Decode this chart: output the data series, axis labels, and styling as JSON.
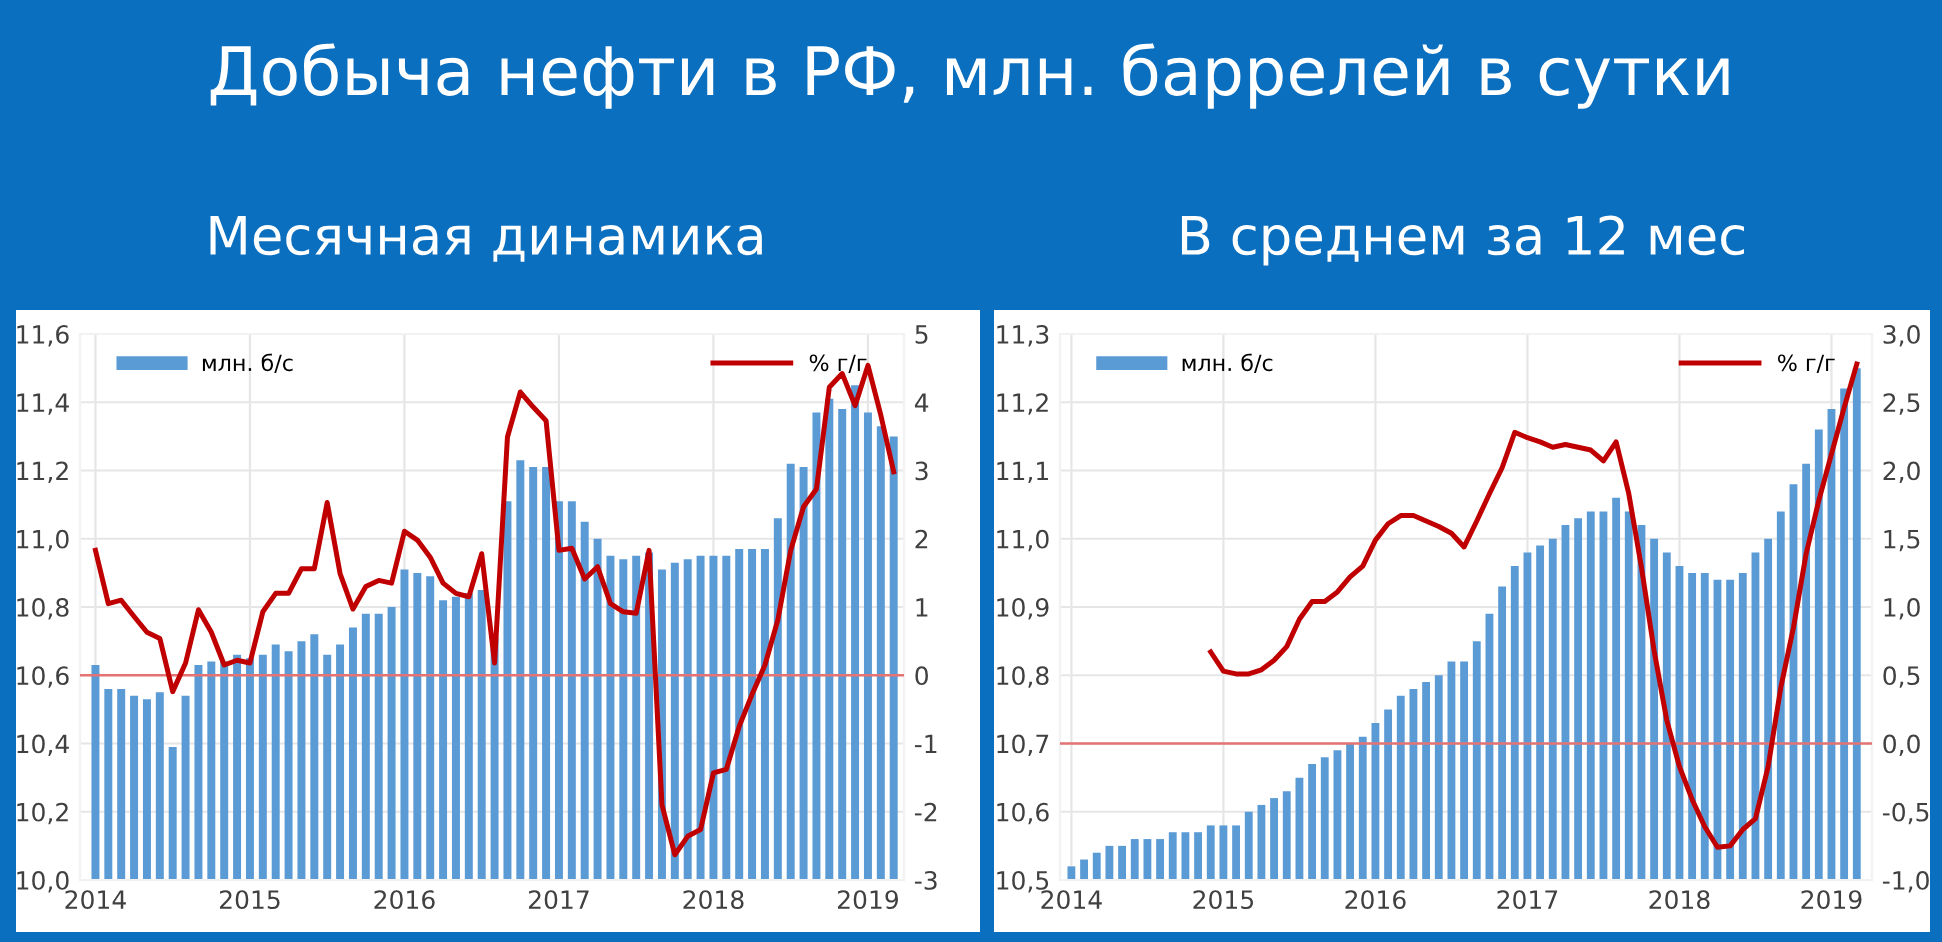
{
  "chart_data": [
    {
      "type": "bar",
      "title": "Добыча нефти в РФ, млн. баррелей в сутки",
      "subtitle": "Месячная динамика",
      "categories": [
        "2014",
        null,
        null,
        null,
        null,
        null,
        null,
        null,
        null,
        null,
        null,
        null,
        "2015",
        null,
        null,
        null,
        null,
        null,
        null,
        null,
        null,
        null,
        null,
        null,
        "2016",
        null,
        null,
        null,
        null,
        null,
        null,
        null,
        null,
        null,
        null,
        null,
        "2017",
        null,
        null,
        null,
        null,
        null,
        null,
        null,
        null,
        null,
        null,
        null,
        "2018",
        null,
        null,
        null,
        null,
        null,
        null,
        null,
        null,
        null,
        null,
        null,
        "2019",
        null,
        null
      ],
      "series": [
        {
          "name": "млн. б/с",
          "color": "#5b9bd5",
          "values": [
            10.63,
            10.56,
            10.56,
            10.54,
            10.53,
            10.55,
            10.39,
            10.54,
            10.63,
            10.64,
            10.64,
            10.66,
            10.65,
            10.66,
            10.69,
            10.67,
            10.7,
            10.72,
            10.66,
            10.69,
            10.74,
            10.78,
            10.78,
            10.8,
            10.91,
            10.9,
            10.89,
            10.82,
            10.83,
            10.84,
            10.85,
            10.71,
            11.11,
            11.23,
            11.21,
            11.21,
            11.11,
            11.11,
            11.05,
            11.0,
            10.95,
            10.94,
            10.95,
            10.96,
            10.91,
            10.93,
            10.94,
            10.95,
            10.95,
            10.95,
            10.97,
            10.97,
            10.97,
            11.06,
            11.22,
            11.21,
            11.37,
            11.41,
            11.38,
            11.45,
            11.37,
            11.33,
            11.3
          ]
        },
        {
          "name": "% г/г",
          "type": "line",
          "axis": "y2",
          "color": "#c00000",
          "values": [
            1.83,
            1.05,
            1.1,
            0.86,
            0.63,
            0.54,
            -0.24,
            0.18,
            0.96,
            0.63,
            0.15,
            0.22,
            0.18,
            0.93,
            1.2,
            1.2,
            1.56,
            1.56,
            2.53,
            1.49,
            0.97,
            1.3,
            1.39,
            1.35,
            2.11,
            1.98,
            1.73,
            1.35,
            1.2,
            1.15,
            1.78,
            0.18,
            3.49,
            4.15,
            3.93,
            3.73,
            1.83,
            1.86,
            1.41,
            1.59,
            1.05,
            0.93,
            0.91,
            1.83,
            -1.9,
            -2.63,
            -2.36,
            -2.26,
            -1.43,
            -1.38,
            -0.75,
            -0.28,
            0.15,
            0.81,
            1.83,
            2.47,
            2.73,
            4.22,
            4.42,
            3.95,
            4.54,
            3.81,
            2.98
          ]
        }
      ],
      "ylim": [
        10.0,
        11.6
      ],
      "yticks": [
        {
          "value": 10.0,
          "label": "10,0"
        },
        {
          "value": 10.2,
          "label": "10,2"
        },
        {
          "value": 10.4,
          "label": "10,4"
        },
        {
          "value": 10.6,
          "label": "10,6"
        },
        {
          "value": 10.8,
          "label": "10,8"
        },
        {
          "value": 11.0,
          "label": "11,0"
        },
        {
          "value": 11.2,
          "label": "11,2"
        },
        {
          "value": 11.4,
          "label": "11,4"
        },
        {
          "value": 11.6,
          "label": "11,6"
        }
      ],
      "y2lim": [
        -3,
        5
      ],
      "y2ticks": [
        -3,
        -2,
        -1,
        0,
        1,
        2,
        3,
        4,
        5
      ],
      "ref_lines": [
        {
          "axis": "y2",
          "value": 0,
          "color": "#e57373"
        }
      ],
      "grid": true,
      "legend": "top",
      "marker": "none",
      "line_style": "solid"
    },
    {
      "type": "bar",
      "subtitle": "В среднем за 12 мес",
      "categories": [
        "2014",
        null,
        null,
        null,
        null,
        null,
        null,
        null,
        null,
        null,
        null,
        null,
        "2015",
        null,
        null,
        null,
        null,
        null,
        null,
        null,
        null,
        null,
        null,
        null,
        "2016",
        null,
        null,
        null,
        null,
        null,
        null,
        null,
        null,
        null,
        null,
        null,
        "2017",
        null,
        null,
        null,
        null,
        null,
        null,
        null,
        null,
        null,
        null,
        null,
        "2018",
        null,
        null,
        null,
        null,
        null,
        null,
        null,
        null,
        null,
        null,
        null,
        "2019",
        null,
        null
      ],
      "series": [
        {
          "name": "млн. б/с",
          "color": "#5b9bd5",
          "values": [
            10.52,
            10.53,
            10.54,
            10.55,
            10.55,
            10.56,
            10.56,
            10.56,
            10.57,
            10.57,
            10.57,
            10.58,
            10.58,
            10.58,
            10.6,
            10.61,
            10.62,
            10.63,
            10.65,
            10.67,
            10.68,
            10.69,
            10.7,
            10.71,
            10.73,
            10.75,
            10.77,
            10.78,
            10.79,
            10.8,
            10.82,
            10.82,
            10.85,
            10.89,
            10.93,
            10.96,
            10.98,
            10.99,
            11.0,
            11.02,
            11.03,
            11.04,
            11.04,
            11.06,
            11.04,
            11.02,
            11.0,
            10.98,
            10.96,
            10.95,
            10.95,
            10.94,
            10.94,
            10.95,
            10.98,
            11.0,
            11.04,
            11.08,
            11.11,
            11.16,
            11.19,
            11.22,
            11.25
          ]
        },
        {
          "name": "% г/г",
          "type": "line",
          "axis": "y2",
          "color": "#c00000",
          "values": [
            null,
            null,
            null,
            null,
            null,
            null,
            null,
            null,
            null,
            null,
            null,
            0.67,
            0.53,
            0.51,
            0.51,
            0.54,
            0.61,
            0.71,
            0.91,
            1.04,
            1.04,
            1.11,
            1.22,
            1.3,
            1.49,
            1.61,
            1.67,
            1.67,
            1.63,
            1.59,
            1.54,
            1.44,
            1.63,
            1.83,
            2.02,
            2.28,
            2.24,
            2.21,
            2.17,
            2.19,
            2.17,
            2.15,
            2.07,
            2.21,
            1.83,
            1.29,
            0.68,
            0.17,
            -0.17,
            -0.41,
            -0.61,
            -0.76,
            -0.75,
            -0.63,
            -0.55,
            -0.17,
            0.41,
            0.85,
            1.39,
            1.78,
            2.12,
            2.46,
            2.78
          ]
        }
      ],
      "ylim": [
        10.5,
        11.3
      ],
      "yticks": [
        {
          "value": 10.5,
          "label": "10,5"
        },
        {
          "value": 10.6,
          "label": "10,6"
        },
        {
          "value": 10.7,
          "label": "10,7"
        },
        {
          "value": 10.8,
          "label": "10,8"
        },
        {
          "value": 10.9,
          "label": "10,9"
        },
        {
          "value": 11.0,
          "label": "11,0"
        },
        {
          "value": 11.1,
          "label": "11,1"
        },
        {
          "value": 11.2,
          "label": "11,2"
        },
        {
          "value": 11.3,
          "label": "11,3"
        }
      ],
      "y2lim": [
        -1.0,
        3.0
      ],
      "y2ticks": [
        {
          "value": -1.0,
          "label": "-1,0"
        },
        {
          "value": -0.5,
          "label": "-0,5"
        },
        {
          "value": 0.0,
          "label": "0,0"
        },
        {
          "value": 0.5,
          "label": "0,5"
        },
        {
          "value": 1.0,
          "label": "1,0"
        },
        {
          "value": 1.5,
          "label": "1,5"
        },
        {
          "value": 2.0,
          "label": "2,0"
        },
        {
          "value": 2.5,
          "label": "2,5"
        },
        {
          "value": 3.0,
          "label": "3,0"
        }
      ],
      "ref_lines": [
        {
          "axis": "y2",
          "value": 0.0,
          "color": "#e57373"
        }
      ],
      "grid": true,
      "legend": "top",
      "marker": "none",
      "line_style": "solid"
    }
  ]
}
